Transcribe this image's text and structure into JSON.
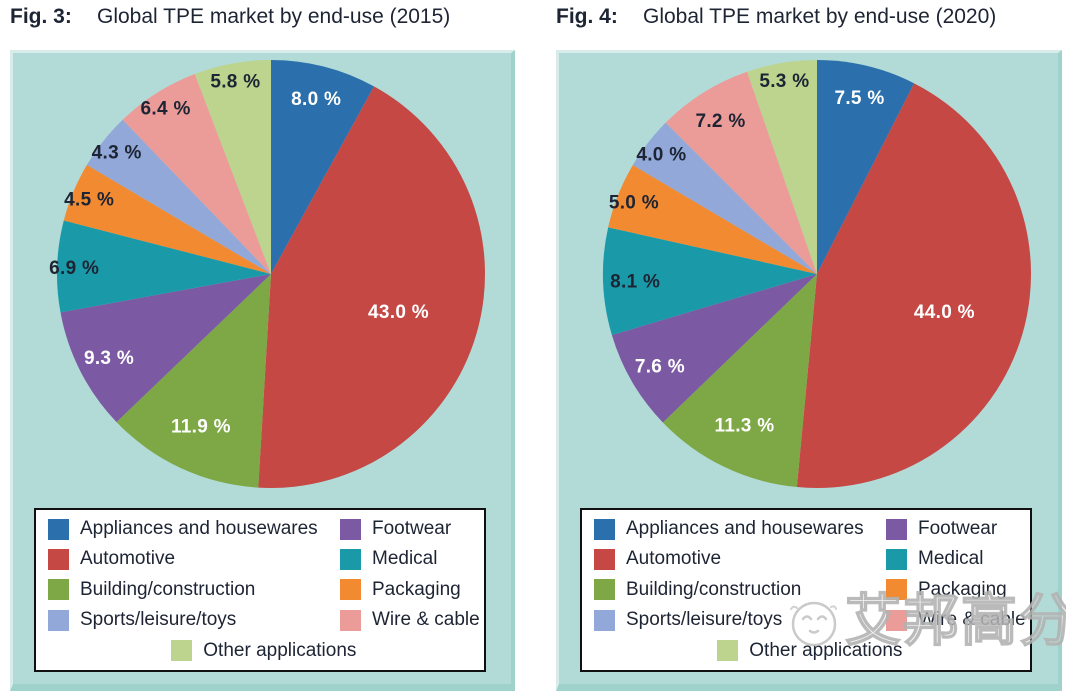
{
  "palette": {
    "slice_colors": [
      "#2b70ac",
      "#c54845",
      "#7da845",
      "#7c59a3",
      "#1a9aa8",
      "#f18a31",
      "#91a8d8",
      "#eb9c99",
      "#bcd48e"
    ],
    "slice_label_fills": [
      "#ffffff",
      "#ffffff",
      "#ffffff",
      "#ffffff",
      "#1d2433",
      "#1d2433",
      "#1d2433",
      "#1d2433",
      "#1d2433"
    ],
    "panel_background": "#b2dbd7",
    "panel_border_light": "#d8ece9",
    "panel_border_dark": "#a0d2cc",
    "legend_border": "#101010",
    "text_dark": "#1d2433"
  },
  "chart_data": [
    {
      "type": "pie",
      "fig_label": "Fig. 3:",
      "title": "Global TPE market by end-use (2015)",
      "categories": [
        "Appliances and housewares",
        "Automotive",
        "Building/construction",
        "Footwear",
        "Medical",
        "Packaging",
        "Sports/leisure/toys",
        "Wire & cable",
        "Other applications"
      ],
      "values": [
        8.0,
        43.0,
        11.9,
        9.3,
        6.9,
        4.5,
        4.3,
        6.4,
        5.8
      ],
      "value_labels": [
        "8.0 %",
        "43.0 %",
        "11.9 %",
        "9.3 %",
        "6.9 %",
        "4.5 %",
        "4.3 %",
        "6.4 %",
        "5.8 %"
      ],
      "unit": "%",
      "start_angle_deg": 0,
      "direction": "clockwise",
      "legend_position": "bottom"
    },
    {
      "type": "pie",
      "fig_label": "Fig. 4:",
      "title": "Global TPE market by end-use (2020)",
      "categories": [
        "Appliances and housewares",
        "Automotive",
        "Building/construction",
        "Footwear",
        "Medical",
        "Packaging",
        "Sports/leisure/toys",
        "Wire & cable",
        "Other applications"
      ],
      "values": [
        7.5,
        44.0,
        11.3,
        7.6,
        8.1,
        5.0,
        4.0,
        7.2,
        5.3
      ],
      "value_labels": [
        "7.5 %",
        "44.0 %",
        "11.3 %",
        "7.6 %",
        "8.1 %",
        "5.0 %",
        "4.0 %",
        "7.2 %",
        "5.3 %"
      ],
      "unit": "%",
      "start_angle_deg": 0,
      "direction": "clockwise",
      "legend_position": "bottom"
    }
  ],
  "legend": {
    "columns": [
      [
        "Appliances and housewares",
        "Automotive",
        "Building/construction",
        "Sports/leisure/toys"
      ],
      [
        "Footwear",
        "Medical",
        "Packaging",
        "Wire & cable"
      ]
    ],
    "bottom_item": "Other applications"
  },
  "watermark": {
    "text": "艾邦高分子"
  }
}
